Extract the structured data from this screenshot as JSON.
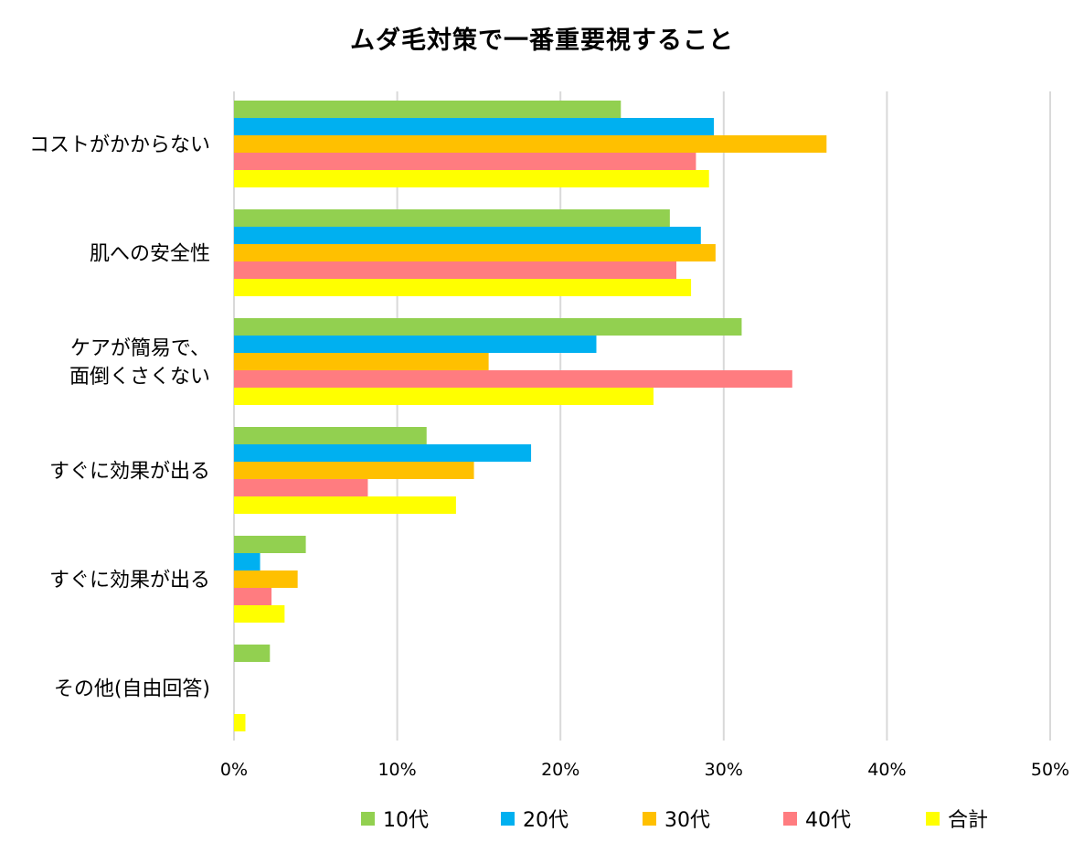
{
  "chart_data": {
    "type": "bar",
    "orientation": "horizontal",
    "title": "ムダ毛対策で一番重要視すること",
    "xlabel": "",
    "ylabel": "",
    "categories": [
      [
        "コストがかからない"
      ],
      [
        "肌への安全性"
      ],
      [
        "ケアが簡易で、",
        "面倒くさくない"
      ],
      [
        "すぐに効果が出る"
      ],
      [
        "すぐに効果が出る"
      ],
      [
        "その他(自由回答)"
      ]
    ],
    "series": [
      {
        "name": "10代",
        "color": "#92d050",
        "values": [
          23.7,
          26.7,
          31.1,
          11.8,
          4.4,
          2.2
        ]
      },
      {
        "name": "20代",
        "color": "#00b0f0",
        "values": [
          29.4,
          28.6,
          22.2,
          18.2,
          1.6,
          0
        ]
      },
      {
        "name": "30代",
        "color": "#ffc000",
        "values": [
          36.3,
          29.5,
          15.6,
          14.7,
          3.9,
          0
        ]
      },
      {
        "name": "40代",
        "color": "#ff7c80",
        "values": [
          28.3,
          27.1,
          34.2,
          8.2,
          2.3,
          0
        ]
      },
      {
        "name": "合計",
        "color": "#ffff00",
        "values": [
          29.1,
          28.0,
          25.7,
          13.6,
          3.1,
          0.7
        ]
      }
    ],
    "xlim": [
      0,
      50
    ],
    "xticks": [
      "0%",
      "10%",
      "20%",
      "30%",
      "40%",
      "50%"
    ],
    "grid": true,
    "legend": "bottom"
  }
}
